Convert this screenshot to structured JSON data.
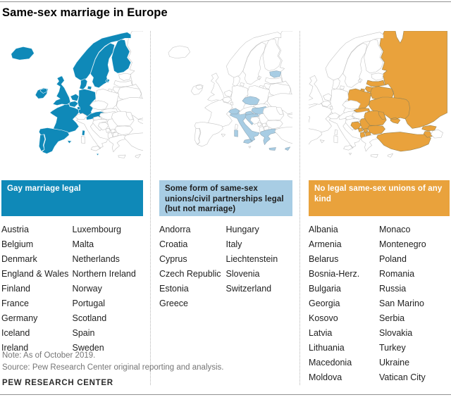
{
  "title": "Same-sex marriage in Europe",
  "note": "Note: As of October 2019.",
  "source": "Source: Pew Research Center original reporting and analysis.",
  "brand": "PEW RESEARCH CENTER",
  "colors": {
    "map_border_default": "#c4c4c4",
    "rule_gray": "#919191",
    "note_gray": "#757575"
  },
  "columns": [
    {
      "id": "legal",
      "header": "Gay marriage legal",
      "header_bg": "#0f89b8",
      "header_text": "#ffffff",
      "map_fill": "#0f89b8",
      "map_stroke_filled": "#e9f4f9",
      "countries": [
        "Austria",
        "Belgium",
        "Denmark",
        "England & Wales",
        "Finland",
        "France",
        "Germany",
        "Iceland",
        "Ireland",
        "Luxembourg",
        "Malta",
        "Netherlands",
        "Northern Ireland",
        "Norway",
        "Portugal",
        "Scotland",
        "Spain",
        "Sweden"
      ]
    },
    {
      "id": "civil",
      "header": "Some form of same-sex unions/civil partnerships legal (but not marriage)",
      "header_bg": "#a8cde4",
      "header_text": "#1d1d1d",
      "map_fill": "#a8cde4",
      "map_stroke_filled": "#8fa6b4",
      "countries": [
        "Andorra",
        "Croatia",
        "Cyprus",
        "Czech Republic",
        "Estonia",
        "Greece",
        "Hungary",
        "Italy",
        "Liechtenstein",
        "Slovenia",
        "Switzerland"
      ]
    },
    {
      "id": "none",
      "header": "No legal same-sex unions of any kind",
      "header_bg": "#e9a23c",
      "header_text": "#ffffff",
      "map_fill": "#e9a23c",
      "map_stroke_filled": "#9a8552",
      "countries": [
        "Albania",
        "Armenia",
        "Belarus",
        "Bosnia-Herz.",
        "Bulgaria",
        "Georgia",
        "Kosovo",
        "Latvia",
        "Lithuania",
        "Macedonia",
        "Moldova",
        "Monaco",
        "Montenegro",
        "Poland",
        "Romania",
        "Russia",
        "San Marino",
        "Serbia",
        "Slovakia",
        "Turkey",
        "Ukraine",
        "Vatican City"
      ]
    }
  ]
}
